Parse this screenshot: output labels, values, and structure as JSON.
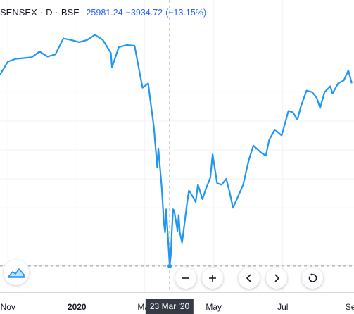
{
  "header": {
    "symbol": "SENSEX",
    "interval": "D",
    "exchange": "BSE",
    "last_value": "25981.24",
    "change": "−3934.72",
    "change_percent": "(−13.15%)"
  },
  "crosshair": {
    "date_label": "23 Mar '20",
    "x_date": "2020-03-23"
  },
  "x_axis_labels": [
    {
      "text": "Nov",
      "date": "2019-11-01",
      "bold": false
    },
    {
      "text": "2020",
      "date": "2020-01-01",
      "bold": true
    },
    {
      "text": "Mar",
      "date": "2020-03-01",
      "bold": false
    },
    {
      "text": "May",
      "date": "2020-05-01",
      "bold": false
    },
    {
      "text": "Jul",
      "date": "2020-07-01",
      "bold": false
    },
    {
      "text": "Sep",
      "date": "2020-09-01",
      "bold": false
    }
  ],
  "colors": {
    "line": "#2196f3",
    "grid": "#f0f3fa",
    "crosshair": "#9598a1",
    "value_text": "#2962ff"
  },
  "icons": {
    "logo": "tradingview-cloud-icon",
    "zoom_out": "minus-icon",
    "zoom_in": "plus-icon",
    "scroll_left": "chevron-left-icon",
    "scroll_right": "chevron-right-icon",
    "reset": "reset-icon"
  },
  "chart_data": {
    "type": "line",
    "title": "SENSEX · D · BSE",
    "xlabel": "",
    "ylabel": "",
    "grid": true,
    "x_range": [
      "2019-10-25",
      "2020-09-02"
    ],
    "y_range": [
      25000,
      43000
    ],
    "series": [
      {
        "name": "SENSEX",
        "points": [
          [
            "2019-10-25",
            39200
          ],
          [
            "2019-11-01",
            40100
          ],
          [
            "2019-11-08",
            40300
          ],
          [
            "2019-11-15",
            40350
          ],
          [
            "2019-11-22",
            40400
          ],
          [
            "2019-11-29",
            40800
          ],
          [
            "2019-12-06",
            40450
          ],
          [
            "2019-12-13",
            40600
          ],
          [
            "2019-12-20",
            41700
          ],
          [
            "2019-12-27",
            41600
          ],
          [
            "2020-01-03",
            41450
          ],
          [
            "2020-01-10",
            41600
          ],
          [
            "2020-01-17",
            41950
          ],
          [
            "2020-01-24",
            41600
          ],
          [
            "2020-01-31",
            40700
          ],
          [
            "2020-02-01",
            39700
          ],
          [
            "2020-02-07",
            41100
          ],
          [
            "2020-02-14",
            41250
          ],
          [
            "2020-02-21",
            41200
          ],
          [
            "2020-02-28",
            38300
          ],
          [
            "2020-03-04",
            38600
          ],
          [
            "2020-03-09",
            35600
          ],
          [
            "2020-03-12",
            32800
          ],
          [
            "2020-03-13",
            34100
          ],
          [
            "2020-03-16",
            31400
          ],
          [
            "2020-03-18",
            28900
          ],
          [
            "2020-03-19",
            28300
          ],
          [
            "2020-03-20",
            29900
          ],
          [
            "2020-03-23",
            25981
          ],
          [
            "2020-03-24",
            26700
          ],
          [
            "2020-03-25",
            28500
          ],
          [
            "2020-03-26",
            29900
          ],
          [
            "2020-03-27",
            29800
          ],
          [
            "2020-03-30",
            28400
          ],
          [
            "2020-03-31",
            29500
          ],
          [
            "2020-04-01",
            28300
          ],
          [
            "2020-04-03",
            27600
          ],
          [
            "2020-04-07",
            30100
          ],
          [
            "2020-04-09",
            31200
          ],
          [
            "2020-04-13",
            30700
          ],
          [
            "2020-04-15",
            30400
          ],
          [
            "2020-04-17",
            31600
          ],
          [
            "2020-04-21",
            30600
          ],
          [
            "2020-04-24",
            31300
          ],
          [
            "2020-04-28",
            32100
          ],
          [
            "2020-04-30",
            33700
          ],
          [
            "2020-05-04",
            31700
          ],
          [
            "2020-05-08",
            31600
          ],
          [
            "2020-05-12",
            32000
          ],
          [
            "2020-05-15",
            31100
          ],
          [
            "2020-05-18",
            30000
          ],
          [
            "2020-05-22",
            30700
          ],
          [
            "2020-05-27",
            31600
          ],
          [
            "2020-06-01",
            33300
          ],
          [
            "2020-06-05",
            34300
          ],
          [
            "2020-06-12",
            33800
          ],
          [
            "2020-06-16",
            33600
          ],
          [
            "2020-06-19",
            34700
          ],
          [
            "2020-06-24",
            35400
          ],
          [
            "2020-06-30",
            35000
          ],
          [
            "2020-07-06",
            36700
          ],
          [
            "2020-07-10",
            36600
          ],
          [
            "2020-07-14",
            36100
          ],
          [
            "2020-07-17",
            37000
          ],
          [
            "2020-07-22",
            38100
          ],
          [
            "2020-07-27",
            38000
          ],
          [
            "2020-07-31",
            37600
          ],
          [
            "2020-08-03",
            36900
          ],
          [
            "2020-08-07",
            38000
          ],
          [
            "2020-08-12",
            38400
          ],
          [
            "2020-08-14",
            37900
          ],
          [
            "2020-08-19",
            38600
          ],
          [
            "2020-08-24",
            38800
          ],
          [
            "2020-08-28",
            39500
          ],
          [
            "2020-08-31",
            38600
          ]
        ]
      }
    ]
  }
}
